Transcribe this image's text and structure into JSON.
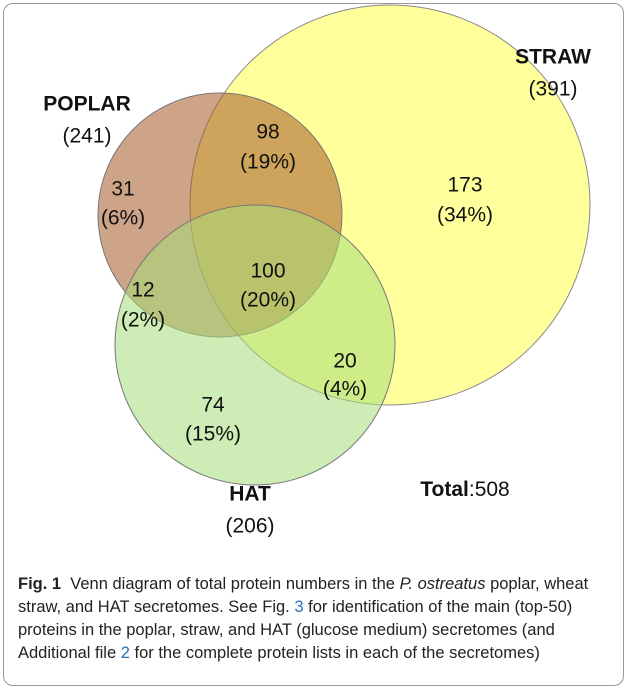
{
  "sets": [
    {
      "label": "POPLAR",
      "count": "(241)"
    },
    {
      "label": "STRAW",
      "count": "(391)"
    },
    {
      "label": "HAT",
      "count": "(206)"
    }
  ],
  "regions": [
    {
      "count": "98",
      "percent": "(19%)"
    },
    {
      "count": "173",
      "percent": "(34%)"
    },
    {
      "count": "31",
      "percent": "(6%)"
    },
    {
      "count": "100",
      "percent": "(20%)"
    },
    {
      "count": "12",
      "percent": "(2%)"
    },
    {
      "count": "20",
      "percent": "(4%)"
    },
    {
      "count": "74",
      "percent": "(15%)"
    }
  ],
  "total": {
    "label": "Total",
    "value": ":508"
  },
  "caption": {
    "label": "Fig. 1",
    "parts": [
      "Venn diagram of total protein numbers in the ",
      "P. ostreatus",
      " poplar, wheat straw, and HAT secretomes. See Fig. ",
      "3",
      " for identification of the main (top-50) proteins in the poplar, straw, and HAT (glucose medium) secretomes (and Additional file ",
      "2",
      " for the complete protein lists in each of the secretomes)"
    ]
  }
}
